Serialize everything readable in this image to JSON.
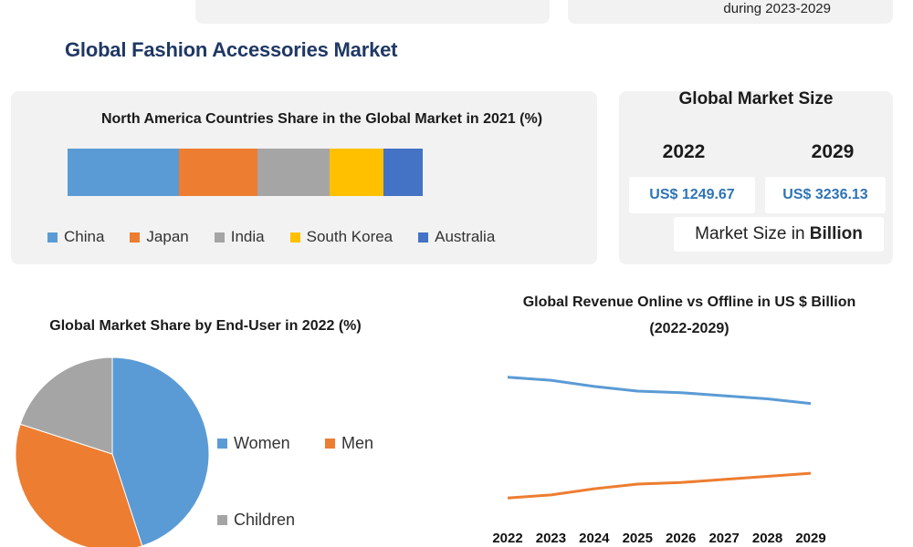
{
  "header": {
    "top_right_text": "during 2023-2029",
    "page_title": "Global Fashion Accessories Market"
  },
  "market_size": {
    "title": "Global Market Size",
    "year_a": "2022",
    "year_b": "2029",
    "value_a": "US$ 1249.67",
    "value_b": "US$ 3236.13",
    "unit_prefix": "Market Size in ",
    "unit_bold": "Billion"
  },
  "colors": {
    "china": "#5b9bd5",
    "japan": "#ed7d31",
    "india": "#a5a5a5",
    "south_korea": "#ffc000",
    "australia": "#4472c4",
    "women": "#5b9bd5",
    "men": "#ed7d31",
    "children": "#a5a5a5",
    "online": "#5b9bd5",
    "offline": "#ed7d31"
  },
  "chart_data": [
    {
      "type": "bar",
      "orientation": "horizontal-stacked",
      "title": "North America Countries Share in the Global Market in 2021 (%)",
      "categories": [
        "2021"
      ],
      "series": [
        {
          "name": "China",
          "values": [
            31
          ]
        },
        {
          "name": "Japan",
          "values": [
            22
          ]
        },
        {
          "name": "India",
          "values": [
            20
          ]
        },
        {
          "name": "South Korea",
          "values": [
            15
          ]
        },
        {
          "name": "Australia",
          "values": [
            11
          ]
        }
      ],
      "legend": "bottom"
    },
    {
      "type": "pie",
      "title": "Global Market Share by End-User in 2022 (%)",
      "labels": [
        "Women",
        "Men",
        "Children"
      ],
      "values": [
        45,
        35,
        20
      ],
      "legend": "right"
    },
    {
      "type": "line",
      "title": "Global Revenue Online vs Offline in US $ Billion (2022-2029)",
      "x": [
        "2022",
        "2023",
        "2024",
        "2025",
        "2026",
        "2027",
        "2028",
        "2029"
      ],
      "series": [
        {
          "values": [
            89,
            87,
            83,
            80,
            79,
            77,
            75,
            72
          ]
        },
        {
          "values": [
            11,
            13,
            17,
            20,
            21,
            23,
            25,
            27
          ]
        }
      ],
      "ylim": [
        0,
        100
      ],
      "grid": false
    }
  ]
}
